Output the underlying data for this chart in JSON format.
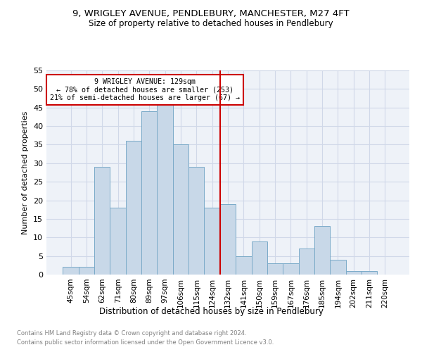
{
  "title": "9, WRIGLEY AVENUE, PENDLEBURY, MANCHESTER, M27 4FT",
  "subtitle": "Size of property relative to detached houses in Pendlebury",
  "xlabel": "Distribution of detached houses by size in Pendlebury",
  "ylabel": "Number of detached properties",
  "footnote1": "Contains HM Land Registry data © Crown copyright and database right 2024.",
  "footnote2": "Contains public sector information licensed under the Open Government Licence v3.0.",
  "bin_labels": [
    "45sqm",
    "54sqm",
    "62sqm",
    "71sqm",
    "80sqm",
    "89sqm",
    "97sqm",
    "106sqm",
    "115sqm",
    "124sqm",
    "132sqm",
    "141sqm",
    "150sqm",
    "159sqm",
    "167sqm",
    "176sqm",
    "185sqm",
    "194sqm",
    "202sqm",
    "211sqm",
    "220sqm"
  ],
  "bar_heights": [
    2,
    2,
    29,
    18,
    36,
    44,
    46,
    35,
    29,
    18,
    19,
    5,
    9,
    3,
    3,
    7,
    13,
    4,
    1,
    1,
    0
  ],
  "bar_color": "#c8d8e8",
  "bar_edge_color": "#7aaac8",
  "vline_x": 9.5,
  "vline_color": "#cc0000",
  "annotation_line1": "9 WRIGLEY AVENUE: 129sqm",
  "annotation_line2": "← 78% of detached houses are smaller (253)",
  "annotation_line3": "21% of semi-detached houses are larger (67) →",
  "annotation_box_color": "#cc0000",
  "ylim": [
    0,
    55
  ],
  "yticks": [
    0,
    5,
    10,
    15,
    20,
    25,
    30,
    35,
    40,
    45,
    50,
    55
  ],
  "grid_color": "#d0d8e8",
  "background_color": "#eef2f8"
}
